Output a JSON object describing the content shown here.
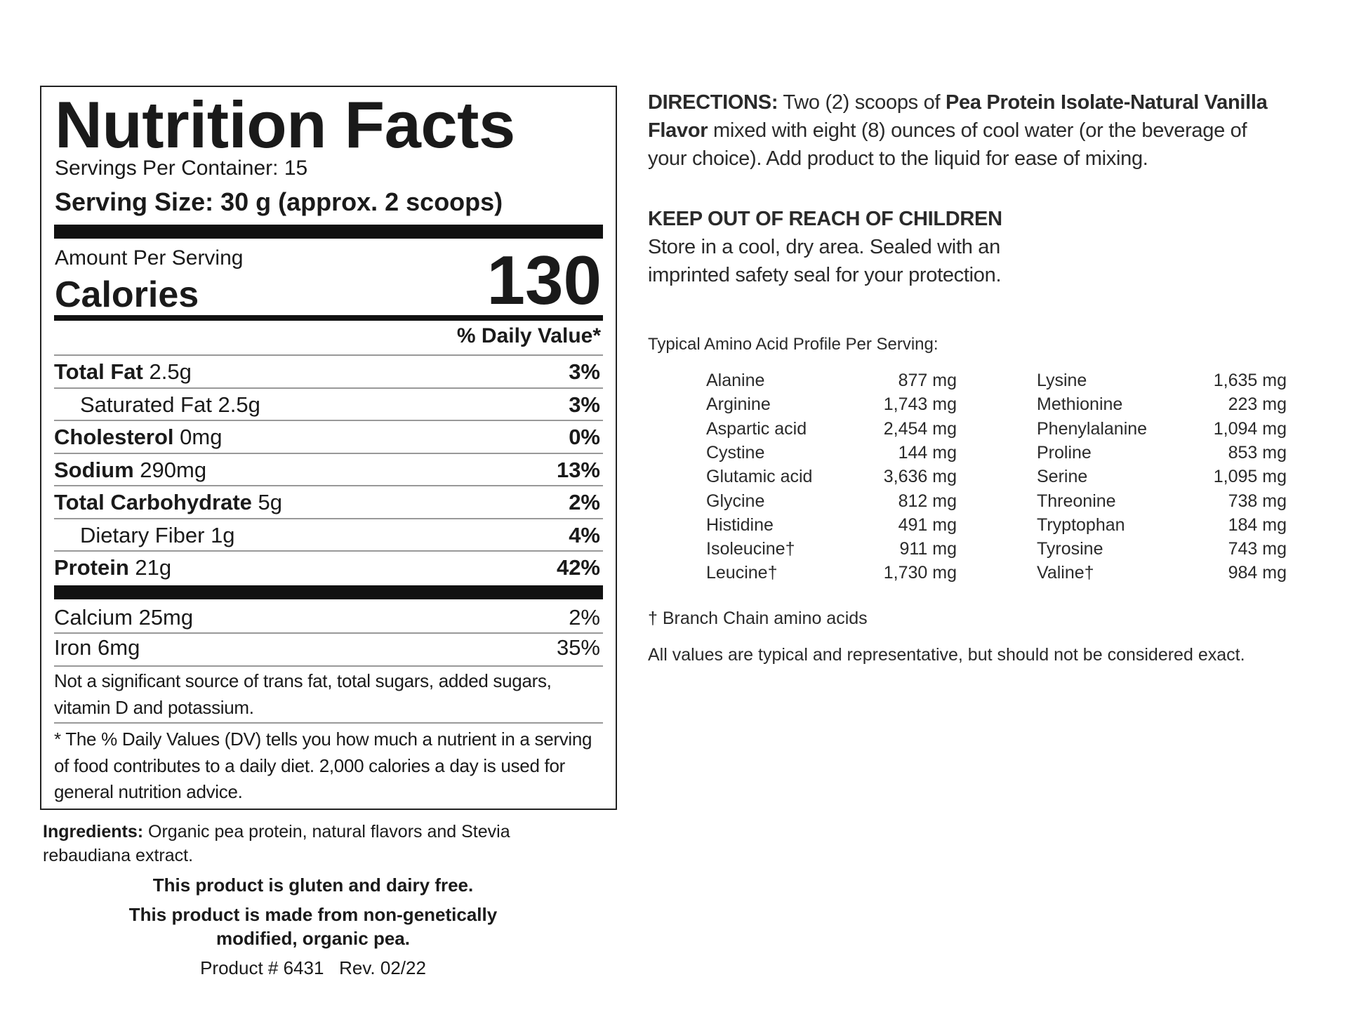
{
  "nutrition": {
    "title": "Nutrition Facts",
    "servings_per_container": "Servings Per Container: 15",
    "serving_size": "Serving Size: 30 g (approx. 2 scoops)",
    "amount_per_serving": "Amount Per Serving",
    "calories_label": "Calories",
    "calories_value": "130",
    "daily_value_header": "% Daily Value*",
    "nutrients": [
      {
        "name": "Total Fat",
        "amount": "2.5g",
        "dv": "3%"
      },
      {
        "name": "Saturated Fat",
        "amount": "2.5g",
        "dv": "3%"
      },
      {
        "name": "Cholesterol",
        "amount": "0mg",
        "dv": "0%"
      },
      {
        "name": "Sodium",
        "amount": "290mg",
        "dv": "13%"
      },
      {
        "name": "Total Carbohydrate",
        "amount": "5g",
        "dv": "2%"
      },
      {
        "name": "Dietary Fiber",
        "amount": "1g",
        "dv": "4%"
      },
      {
        "name": "Protein",
        "amount": "21g",
        "dv": "42%"
      }
    ],
    "minerals": [
      {
        "name": "Calcium 25mg",
        "dv": "2%"
      },
      {
        "name": "Iron 6mg",
        "dv": "35%"
      }
    ],
    "not_significant": "Not a significant source of trans fat, total sugars, added sugars, vitamin D and potassium.",
    "dv_footnote": "* The % Daily Values (DV) tells you how much a nutrient in a serving of food contributes to a daily diet. 2,000 calories a day is used for general nutrition advice."
  },
  "ingredients": {
    "label": "Ingredients:",
    "text": " Organic pea protein, natural flavors and Stevia rebaudiana extract."
  },
  "claims": {
    "gluten": "This product is gluten and dairy free.",
    "non_gmo": "This product is made from non-genetically modified, organic pea.",
    "product": "Product # 6431   Rev. 02/22"
  },
  "directions": {
    "label": "DIRECTIONS:",
    "text1": " Two (2) scoops of ",
    "product_name": "Pea Protein Isolate-Natural Vanilla Flavor",
    "text2": " mixed with eight (8) ounces of cool water (or the beverage of your choice). Add product to the liquid for ease of mixing."
  },
  "warning": {
    "heading": "KEEP OUT OF REACH OF CHILDREN",
    "text": "Store in a cool, dry area. Sealed with an imprinted safety seal for your protection."
  },
  "amino": {
    "heading": "Typical Amino Acid Profile Per Serving:",
    "left": [
      {
        "name": "Alanine",
        "value": "877 mg"
      },
      {
        "name": "Arginine",
        "value": "1,743 mg"
      },
      {
        "name": "Aspartic acid",
        "value": "2,454 mg"
      },
      {
        "name": "Cystine",
        "value": "144 mg"
      },
      {
        "name": "Glutamic acid",
        "value": "3,636 mg"
      },
      {
        "name": "Glycine",
        "value": "812 mg"
      },
      {
        "name": "Histidine",
        "value": "491 mg"
      },
      {
        "name": "Isoleucine†",
        "value": "911 mg"
      },
      {
        "name": "Leucine†",
        "value": "1,730 mg"
      }
    ],
    "right": [
      {
        "name": "Lysine",
        "value": "1,635 mg"
      },
      {
        "name": "Methionine",
        "value": "223 mg"
      },
      {
        "name": "Phenylalanine",
        "value": "1,094 mg"
      },
      {
        "name": "Proline",
        "value": "853 mg"
      },
      {
        "name": "Serine",
        "value": "1,095 mg"
      },
      {
        "name": "Threonine",
        "value": "738 mg"
      },
      {
        "name": "Tryptophan",
        "value": "184 mg"
      },
      {
        "name": "Tyrosine",
        "value": "743 mg"
      },
      {
        "name": "Valine†",
        "value": "984 mg"
      }
    ],
    "bcaa_note": "† Branch Chain amino acids",
    "disclaimer": "All values are typical and representative, but should not be considered exact."
  }
}
